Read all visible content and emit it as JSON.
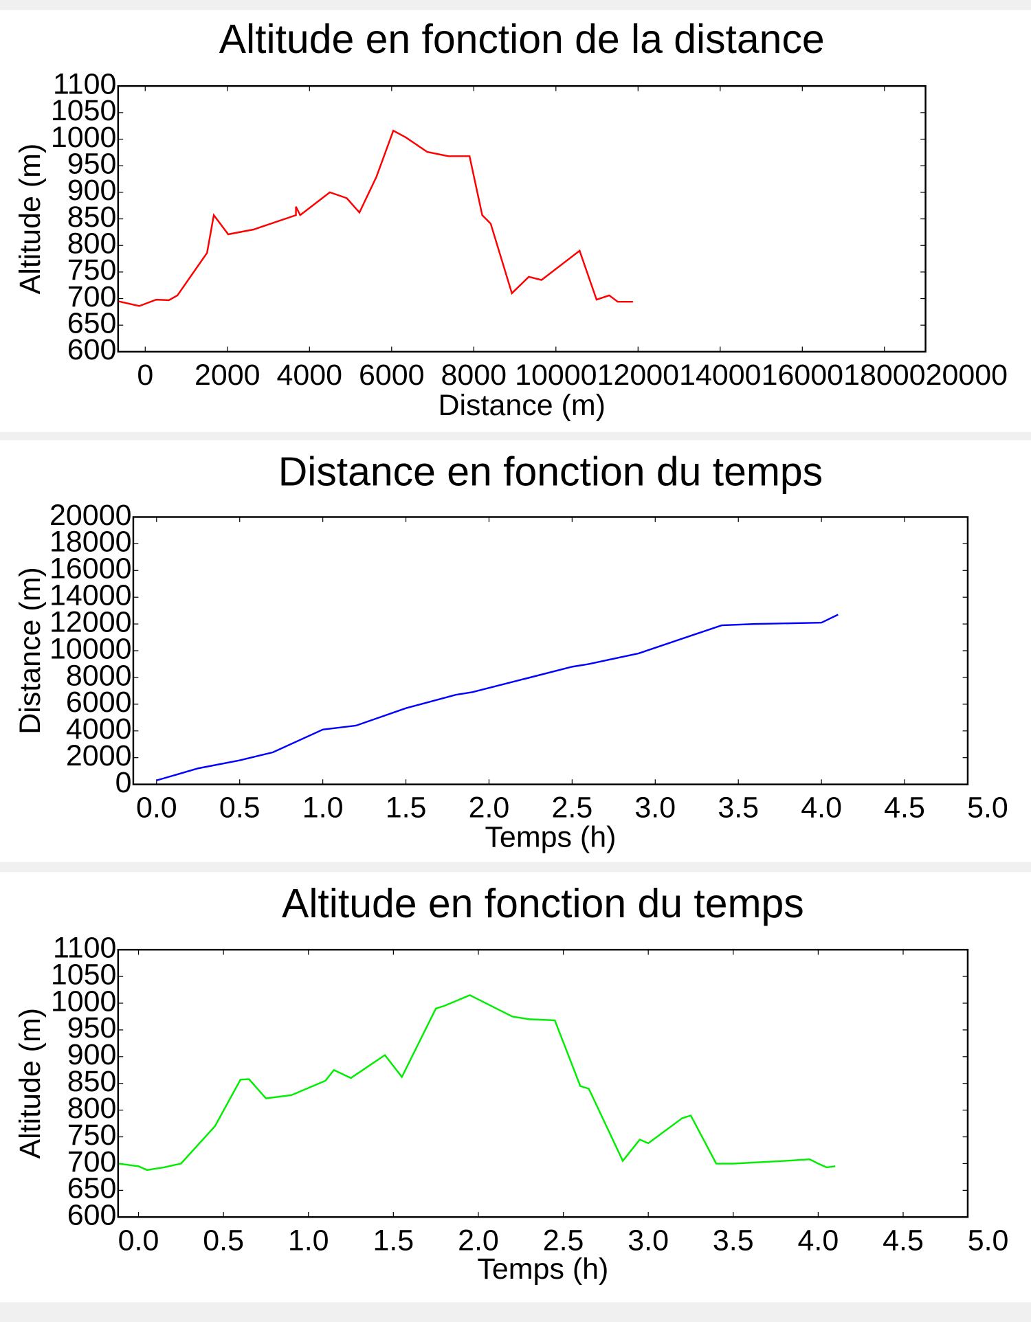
{
  "chart_data": [
    {
      "type": "line",
      "title": "Altitude en fonction de la distance",
      "xlabel": "Distance (m)",
      "ylabel": "Altitude (m)",
      "color": "#ff0000",
      "x": [
        -660,
        -144,
        268,
        577,
        784,
        1505,
        1670,
        2021,
        2639,
        3670,
        3670,
        3773,
        4495,
        4907,
        5216,
        5629,
        6041,
        6351,
        6866,
        7381,
        7897,
        8206,
        8412,
        8928,
        9340,
        9649,
        10577,
        10990,
        11299,
        11505,
        11876
      ],
      "values": [
        695,
        686,
        698,
        697,
        706,
        786,
        857,
        821,
        830,
        857,
        873,
        857,
        900,
        889,
        862,
        929,
        1016,
        1003,
        976,
        968,
        968,
        857,
        841,
        710,
        741,
        735,
        790,
        698,
        706,
        694,
        694
      ],
      "xlim": [
        -660,
        19000
      ],
      "ylim": [
        600,
        1100
      ],
      "xticks": [
        0,
        2000,
        4000,
        6000,
        8000,
        10000,
        12000,
        14000,
        16000,
        18000,
        20000
      ],
      "yticks": [
        600,
        650,
        700,
        750,
        800,
        850,
        900,
        950,
        1000,
        1050,
        1100
      ],
      "grid": false
    },
    {
      "type": "line",
      "title": "Distance en fonction du temps",
      "xlabel": "Temps (h)",
      "ylabel": "Distance (m)",
      "color": "#0000ff",
      "x": [
        0,
        0.25,
        0.5,
        0.7,
        1.0,
        1.2,
        1.5,
        1.8,
        1.9,
        2.5,
        2.6,
        2.9,
        3.4,
        3.6,
        4.0,
        4.1
      ],
      "values": [
        300,
        1200,
        1800,
        2400,
        4100,
        4400,
        5700,
        6700,
        6900,
        8800,
        9000,
        9800,
        11900,
        12000,
        12100,
        12700
      ],
      "xlim": [
        -0.14,
        4.88
      ],
      "ylim": [
        0,
        20000
      ],
      "xticks": [
        {
          "value": 0,
          "label": "0.0"
        },
        0.5,
        {
          "value": 1,
          "label": "1.0"
        },
        1.5,
        {
          "value": 2,
          "label": "2.0"
        },
        2.5,
        {
          "value": 3,
          "label": "3.0"
        },
        3.5,
        {
          "value": 4,
          "label": "4.0"
        },
        4.5,
        {
          "value": 5,
          "label": "5.0"
        }
      ],
      "yticks": [
        0,
        2000,
        4000,
        6000,
        8000,
        10000,
        12000,
        14000,
        16000,
        18000,
        20000
      ],
      "grid": false
    },
    {
      "type": "line",
      "title": "Altitude en fonction du temps",
      "xlabel": "Temps (h)",
      "ylabel": "Altitude (m)",
      "color": "#00ee00",
      "x": [
        -0.12,
        0.0,
        0.05,
        0.15,
        0.25,
        0.45,
        0.6,
        0.65,
        0.75,
        0.9,
        1.1,
        1.15,
        1.25,
        1.45,
        1.55,
        1.75,
        1.8,
        1.95,
        2.2,
        2.3,
        2.45,
        2.6,
        2.65,
        2.85,
        2.95,
        3.0,
        3.2,
        3.25,
        3.4,
        3.5,
        3.8,
        3.95,
        4.0,
        4.05,
        4.1
      ],
      "values": [
        700,
        695,
        688,
        693,
        700,
        770,
        857,
        858,
        822,
        828,
        855,
        875,
        860,
        903,
        862,
        990,
        995,
        1015,
        975,
        970,
        968,
        845,
        840,
        705,
        745,
        738,
        785,
        790,
        700,
        700,
        705,
        708,
        700,
        693,
        695
      ],
      "xlim": [
        -0.12,
        4.88
      ],
      "ylim": [
        600,
        1100
      ],
      "xticks": [
        {
          "value": 0,
          "label": "0.0"
        },
        0.5,
        {
          "value": 1,
          "label": "1.0"
        },
        1.5,
        {
          "value": 2,
          "label": "2.0"
        },
        2.5,
        {
          "value": 3,
          "label": "3.0"
        },
        3.5,
        {
          "value": 4,
          "label": "4.0"
        },
        4.5,
        {
          "value": 5,
          "label": "5.0"
        }
      ],
      "yticks": [
        600,
        650,
        700,
        750,
        800,
        850,
        900,
        950,
        1000,
        1050,
        1100
      ],
      "grid": false
    }
  ]
}
